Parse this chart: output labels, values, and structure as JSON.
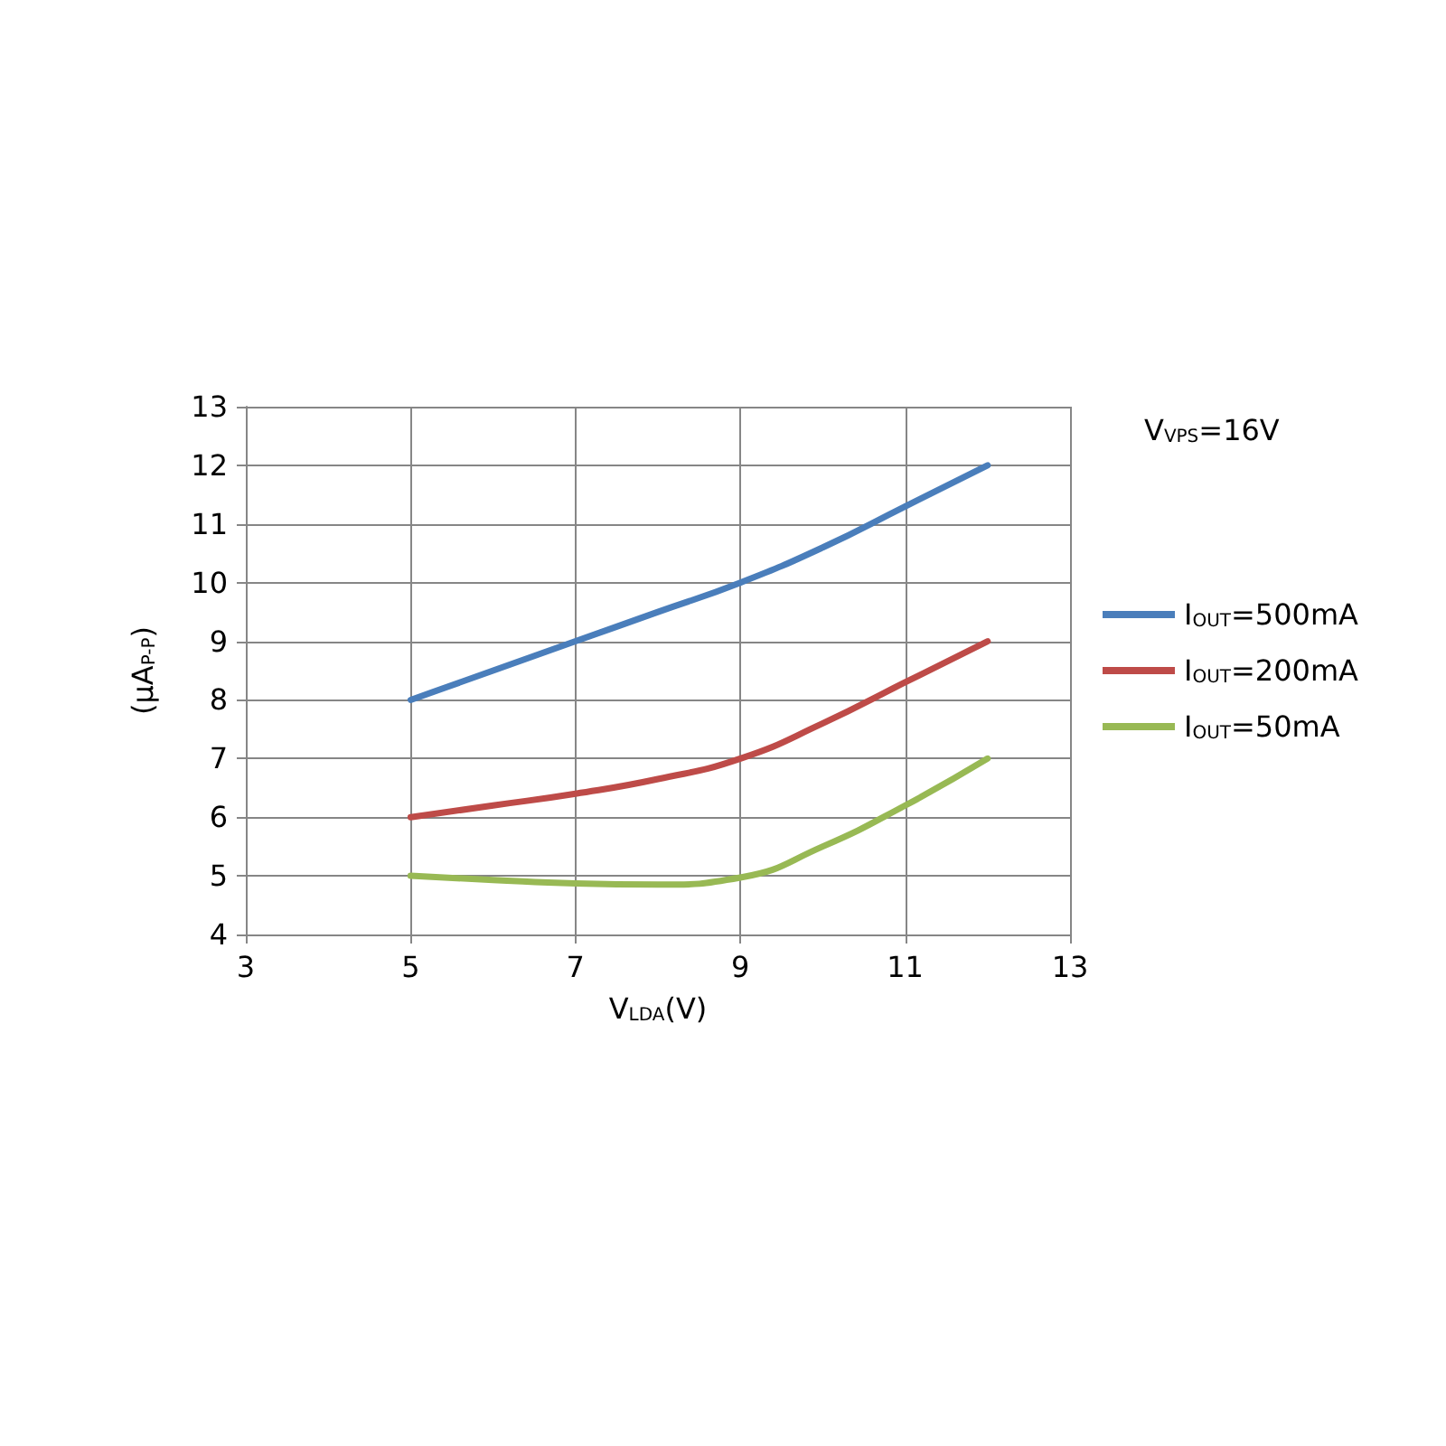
{
  "chart_data": {
    "type": "line",
    "xlabel": "V$_{LDA}$(V)",
    "ylabel": "(µA$_{P-P}$)",
    "annotations": [
      "V$_{VPS}$=16V"
    ],
    "x": [
      5,
      6,
      7,
      8,
      9,
      10,
      11,
      12
    ],
    "series": [
      {
        "name": "I$_{OUT}$=500mA",
        "color": "#4a7ebb",
        "values": [
          8,
          8.5,
          9,
          9.5,
          10,
          10.6,
          11.3,
          12
        ]
      },
      {
        "name": "I$_{OUT}$=200mA",
        "color": "#be4b48",
        "values": [
          6,
          6.2,
          6.4,
          6.65,
          7,
          7.6,
          8.3,
          9
        ]
      },
      {
        "name": "I$_{OUT}$=50mA",
        "color": "#98b954",
        "values": [
          5,
          4.93,
          4.87,
          4.85,
          4.97,
          5.5,
          6.2,
          7
        ]
      }
    ],
    "xlim": [
      3,
      13
    ],
    "xticks": [
      3,
      5,
      7,
      9,
      11,
      13
    ],
    "ylim": [
      4,
      13
    ],
    "yticks": [
      4,
      5,
      6,
      7,
      8,
      9,
      10,
      11,
      12,
      13
    ],
    "grid": true,
    "legend": "right",
    "marker": "none",
    "line_style": "solid"
  }
}
